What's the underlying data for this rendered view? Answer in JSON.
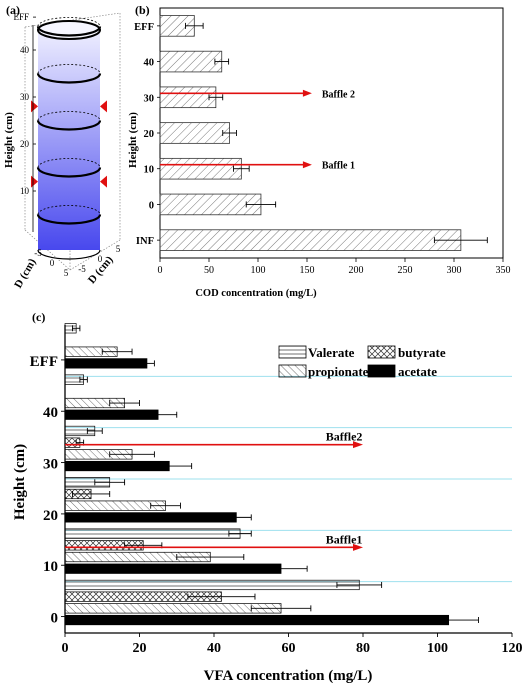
{
  "panels": {
    "a": {
      "label": "(a)"
    },
    "b": {
      "label": "(b)"
    },
    "c": {
      "label": "(c)"
    }
  },
  "colors": {
    "arrow": "#e01010",
    "cylinder_top": "#f4f4ff",
    "cylinder_bottom": "#4a4af0",
    "gridline": "#9ee0ee"
  },
  "chart_data": [
    {
      "panel": "a",
      "type": "diagram-3d-cylinder",
      "zlabel": "Height (cm)",
      "zticks": [
        "10",
        "20",
        "30",
        "40",
        "EFF"
      ],
      "xlabel": "D (cm)",
      "ylabel": "D (cm)",
      "xticks": [
        "-5",
        "0",
        "5"
      ],
      "yticks": [
        "-5",
        "0",
        "5"
      ],
      "ring_heights": [
        5,
        15,
        25,
        35,
        45
      ],
      "baffle_heights": [
        12,
        28
      ]
    },
    {
      "panel": "b",
      "type": "bar",
      "orientation": "horizontal",
      "categories": [
        "INF",
        "0",
        "10",
        "20",
        "30",
        "40",
        "EFF"
      ],
      "values": [
        307,
        103,
        83,
        71,
        57,
        63,
        35
      ],
      "errors": [
        27,
        15,
        8,
        7,
        7,
        7,
        9
      ],
      "xlabel": "COD concentration (mg/L)",
      "ylabel": "Height (cm)",
      "xlim": [
        0,
        350
      ],
      "xticks": [
        0,
        50,
        100,
        150,
        200,
        250,
        300,
        350
      ],
      "annotations": [
        {
          "text": "Baffle 1",
          "category": "10",
          "x_end": 155
        },
        {
          "text": "Baffle 2",
          "category": "30",
          "x_end": 155
        }
      ]
    },
    {
      "panel": "c",
      "type": "bar",
      "orientation": "horizontal",
      "categories": [
        "0",
        "10",
        "20",
        "30",
        "40",
        "EFF"
      ],
      "series": [
        {
          "name": "Valerate",
          "values": [
            79,
            47,
            12,
            8,
            5,
            3
          ],
          "errors": [
            6,
            3,
            4,
            2,
            1,
            1
          ]
        },
        {
          "name": "butyrate",
          "values": [
            42,
            21,
            7,
            4,
            0,
            0
          ],
          "errors": [
            9,
            5,
            5,
            1,
            0,
            0
          ]
        },
        {
          "name": "propionate",
          "values": [
            58,
            39,
            27,
            18,
            16,
            14
          ],
          "errors": [
            8,
            9,
            4,
            6,
            4,
            4
          ]
        },
        {
          "name": "acetate",
          "values": [
            103,
            58,
            46,
            28,
            25,
            22
          ],
          "errors": [
            8,
            7,
            4,
            6,
            5,
            2
          ]
        }
      ],
      "xlabel": "VFA concentration (mg/L)",
      "ylabel": "Height (cm)",
      "xlim": [
        0,
        120
      ],
      "xticks": [
        0,
        20,
        40,
        60,
        80,
        100,
        120
      ],
      "annotations": [
        {
          "text": "Baffle1",
          "category": "10",
          "x_end": 80
        },
        {
          "text": "Baffle2",
          "category": "30",
          "x_end": 80
        }
      ]
    }
  ]
}
